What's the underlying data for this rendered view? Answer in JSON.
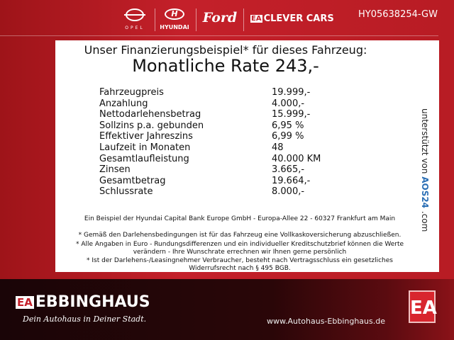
{
  "header": {
    "brands": [
      "OPEL",
      "HYUNDAI",
      "Ford",
      "CLEVER CARS"
    ],
    "clever_prefix": "EA",
    "vehicle_id": "HY05638254-GW"
  },
  "panel": {
    "headline": "Unser Finanzierungsbeispiel* für dieses Fahrzeug:",
    "rate": "Monatliche Rate 243,-",
    "rows": [
      {
        "label": "Fahrzeugpreis",
        "value": "19.999,-"
      },
      {
        "label": "Anzahlung",
        "value": "4.000,-"
      },
      {
        "label": "Nettodarlehensbetrag",
        "value": "15.999,-"
      },
      {
        "label": "Sollzins p.a. gebunden",
        "value": "6,95 %"
      },
      {
        "label": "Effektiver Jahreszins",
        "value": "6,99 %"
      },
      {
        "label": "Laufzeit in Monaten",
        "value": "48"
      },
      {
        "label": "Gesamtlaufleistung",
        "value": "40.000 KM"
      },
      {
        "label": "Zinsen",
        "value": "3.665,-"
      },
      {
        "label": "Gesamtbetrag",
        "value": "19.664,-"
      },
      {
        "label": "Schlussrate",
        "value": "8.000,-"
      }
    ],
    "side_prefix": "unterstützt von",
    "side_brand": "AOS24",
    "side_suffix": ".com",
    "bank": "Ein Beispiel der Hyundai Capital Bank Europe GmbH - Europa-Allee 22 - 60327 Frankfurt am Main",
    "notes": [
      "* Gemäß den Darlehensbedingungen ist für das Fahrzeug eine Vollkaskoversicherung abzuschließen.",
      "* Alle Angaben in Euro - Rundungsdifferenzen und ein individueller Kreditschutzbrief können die Werte verändern - Ihre Wunschrate errechnen wir Ihnen gerne persönlich",
      "* Ist der Darlehens-/Leasingnehmer Verbraucher, besteht nach Vertragsschluss ein gesetzliches Widerrufsrecht nach § 495 BGB."
    ]
  },
  "footer": {
    "logo_prefix": "EA",
    "brand": "EBBINGHAUS",
    "slogan": "Dein Autohaus in Deiner Stadt.",
    "url": "www.Autohaus-Ebbinghaus.de",
    "badge": "EA"
  }
}
